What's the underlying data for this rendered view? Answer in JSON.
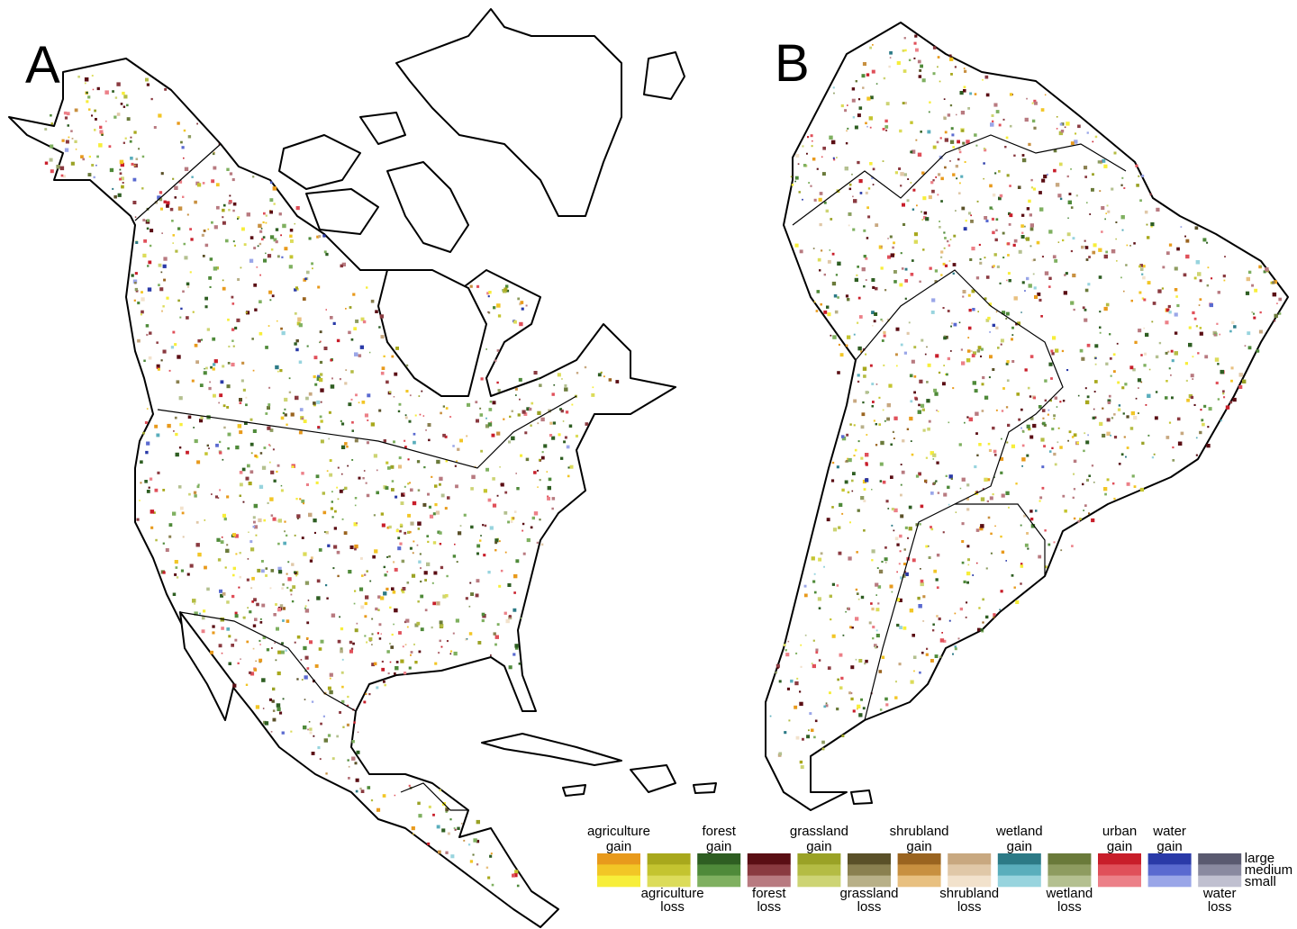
{
  "panels": [
    {
      "label": "A"
    },
    {
      "label": "B"
    }
  ],
  "legend": {
    "items": [
      {
        "label": [
          "agriculture",
          "gain"
        ],
        "colors": [
          "#e89a1c",
          "#f2c626",
          "#f7ee3a"
        ]
      },
      {
        "label": [
          "agriculture",
          "loss"
        ],
        "colors": [
          "#a8a81c",
          "#c4c430",
          "#dcdc5a"
        ]
      },
      {
        "label": [
          "forest",
          "gain"
        ],
        "colors": [
          "#2e5e22",
          "#4f8a3a",
          "#7fb060"
        ]
      },
      {
        "label": [
          "forest",
          "loss"
        ],
        "colors": [
          "#5a0e14",
          "#8a3a40",
          "#b87a80"
        ]
      },
      {
        "label": [
          "grassland",
          "gain"
        ],
        "colors": [
          "#9aa226",
          "#b4bc44",
          "#cdd474"
        ]
      },
      {
        "label": [
          "grassland",
          "loss"
        ],
        "colors": [
          "#5a5028",
          "#8a8050",
          "#b8b088"
        ]
      },
      {
        "label": [
          "shrubland",
          "gain"
        ],
        "colors": [
          "#9a6420",
          "#c89040",
          "#e8c080"
        ]
      },
      {
        "label": [
          "shrubland",
          "loss"
        ],
        "colors": [
          "#c8a880",
          "#e0c8a8",
          "#f2e2cc"
        ]
      },
      {
        "label": [
          "wetland",
          "gain"
        ],
        "colors": [
          "#2c7a86",
          "#5aaebc",
          "#98d4de"
        ]
      },
      {
        "label": [
          "wetland",
          "loss"
        ],
        "colors": [
          "#6a7a3a",
          "#8e9c60",
          "#b4c090"
        ]
      },
      {
        "label": [
          "urban",
          "gain"
        ],
        "colors": [
          "#c81e2a",
          "#e0505a",
          "#ec8088"
        ]
      },
      {
        "label": [
          "water",
          "gain"
        ],
        "colors": [
          "#2a3aa8",
          "#5a6ad0",
          "#9aa6e8"
        ]
      },
      {
        "label": [
          "water",
          "loss"
        ],
        "colors": [
          "#5a5a70",
          "#8a8aa0",
          "#c0c0d0"
        ]
      }
    ],
    "sizes": [
      "large",
      "medium",
      "small"
    ]
  }
}
